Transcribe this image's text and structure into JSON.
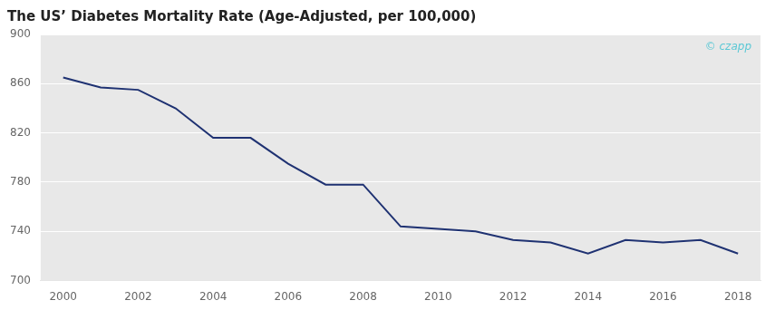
{
  "chart_data": {
    "type": "line",
    "title": "The US’ Diabetes Mortality Rate (Age-Adjusted, per 100,000)",
    "x": [
      2000,
      2001,
      2002,
      2003,
      2004,
      2005,
      2006,
      2007,
      2008,
      2009,
      2010,
      2011,
      2012,
      2013,
      2014,
      2015,
      2016,
      2017,
      2018
    ],
    "values": [
      865,
      857,
      855,
      840,
      816,
      816,
      795,
      778,
      778,
      744,
      742,
      740,
      733,
      731,
      722,
      733,
      731,
      733,
      722
    ],
    "color": "#1f3272",
    "xlim": [
      1999.4,
      2018.6
    ],
    "xticks": [
      2000,
      2002,
      2004,
      2006,
      2008,
      2010,
      2012,
      2014,
      2016,
      2018
    ],
    "ylim": [
      700,
      900
    ],
    "yticks": [
      700,
      740,
      780,
      820,
      860,
      900
    ],
    "grid": true,
    "annotations": [
      {
        "text": "© czapp",
        "color": "#5bc8d5"
      }
    ]
  }
}
